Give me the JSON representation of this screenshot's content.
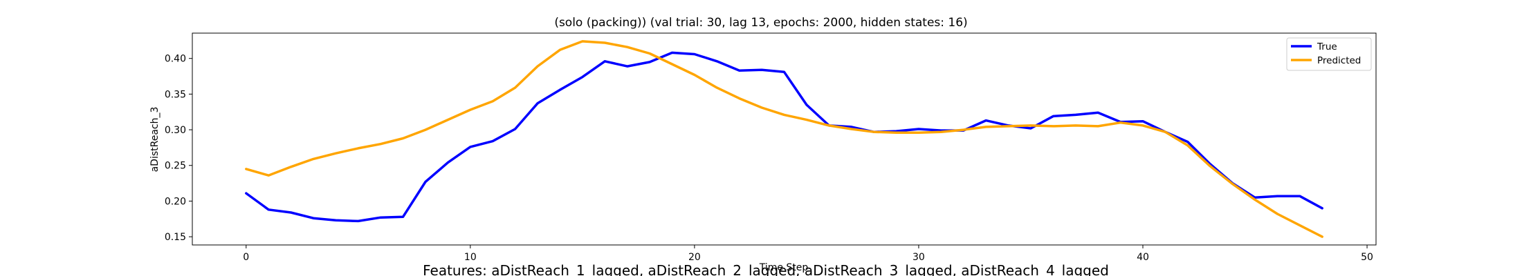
{
  "chart_data": {
    "type": "line",
    "title": "(solo (packing)) (val trial: 30, lag 13, epochs: 2000, hidden states: 16)",
    "xlabel": "Time Step",
    "ylabel": "aDistReach_3",
    "footer": "Features: aDistReach_1_lagged, aDistReach_2_lagged, aDistReach_3_lagged, aDistReach_4_lagged",
    "xlim": [
      -2.4,
      50.4
    ],
    "ylim": [
      0.1385,
      0.4355
    ],
    "xticks": [
      0,
      10,
      20,
      30,
      40,
      50
    ],
    "yticks": [
      0.15,
      0.2,
      0.25,
      0.3,
      0.35,
      0.4
    ],
    "ytick_labels": [
      "0.15",
      "0.20",
      "0.25",
      "0.30",
      "0.35",
      "0.40"
    ],
    "grid": false,
    "legend_position": "top-right",
    "x": [
      0,
      1,
      2,
      3,
      4,
      5,
      6,
      7,
      8,
      9,
      10,
      11,
      12,
      13,
      14,
      15,
      16,
      17,
      18,
      19,
      20,
      21,
      22,
      23,
      24,
      25,
      26,
      27,
      28,
      29,
      30,
      31,
      32,
      33,
      34,
      35,
      36,
      37,
      38,
      39,
      40,
      41,
      42,
      43,
      44,
      45,
      46,
      47,
      48
    ],
    "series": [
      {
        "name": "True",
        "color": "#0000ff",
        "values": [
          0.211,
          0.188,
          0.184,
          0.176,
          0.173,
          0.172,
          0.177,
          0.178,
          0.227,
          0.254,
          0.276,
          0.284,
          0.301,
          0.337,
          0.356,
          0.374,
          0.396,
          0.389,
          0.395,
          0.408,
          0.406,
          0.396,
          0.383,
          0.384,
          0.381,
          0.335,
          0.306,
          0.304,
          0.297,
          0.298,
          0.301,
          0.299,
          0.299,
          0.313,
          0.306,
          0.302,
          0.319,
          0.321,
          0.324,
          0.311,
          0.312,
          0.297,
          0.283,
          0.252,
          0.225,
          0.205,
          0.207,
          0.207,
          0.19
        ]
      },
      {
        "name": "Predicted",
        "color": "#ffa500",
        "values": [
          0.245,
          0.236,
          0.248,
          0.259,
          0.267,
          0.274,
          0.28,
          0.288,
          0.3,
          0.314,
          0.328,
          0.34,
          0.359,
          0.389,
          0.412,
          0.424,
          0.422,
          0.416,
          0.407,
          0.392,
          0.377,
          0.359,
          0.344,
          0.331,
          0.321,
          0.314,
          0.306,
          0.301,
          0.297,
          0.296,
          0.296,
          0.297,
          0.3,
          0.304,
          0.305,
          0.306,
          0.305,
          0.306,
          0.305,
          0.31,
          0.306,
          0.297,
          0.278,
          0.249,
          0.224,
          0.202,
          0.182,
          0.166,
          0.15
        ]
      }
    ]
  }
}
